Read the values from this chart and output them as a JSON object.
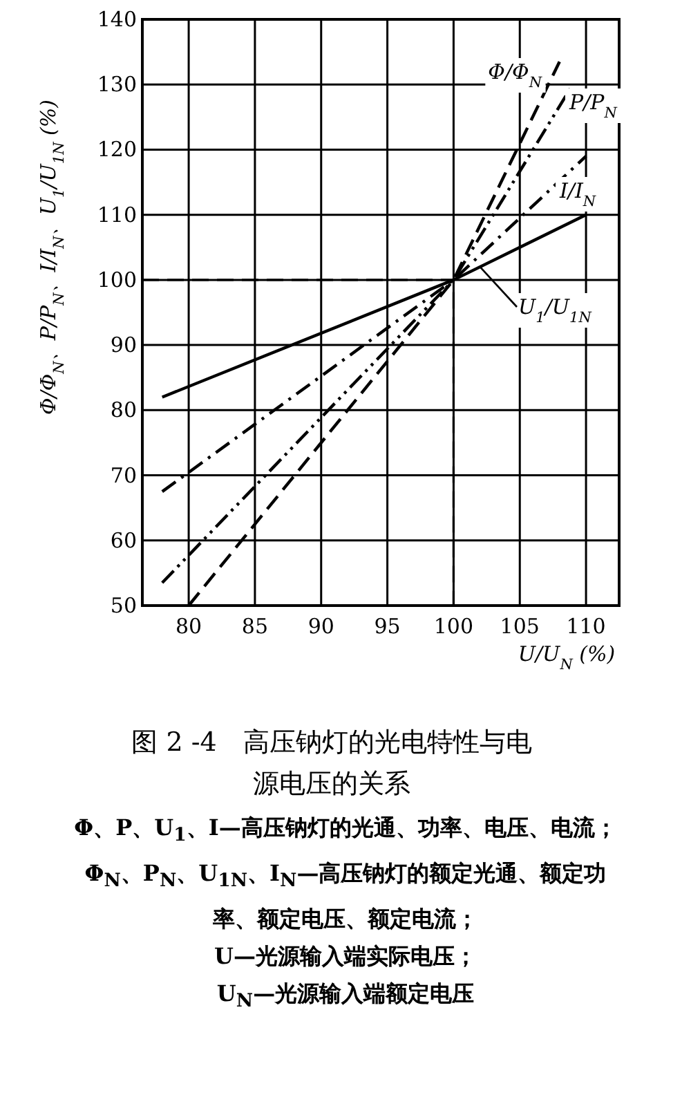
{
  "chart_data": {
    "type": "line",
    "title": "图 2 -4　高压钠灯的光电特性与电源电压的关系",
    "xlabel": "U/U$_{N}$ (%)",
    "ylabel": "Φ/Φ$_{N}$、P/P$_{N}$、I/I$_{N}$、U$_{1}$/U$_{1N}$ (%)",
    "series": [
      {
        "name": "Φ/Φ$_{N}$",
        "color": "#000000",
        "line_style": "dashed",
        "x": [
          80,
          100,
          108
        ],
        "values": [
          50,
          100,
          133.5
        ]
      },
      {
        "name": "P/P$_{N}$",
        "color": "#000000",
        "line_style": "dashdotdot",
        "x": [
          78,
          100,
          109
        ],
        "values": [
          53.5,
          100,
          130
        ]
      },
      {
        "name": "I/I$_{N}$",
        "color": "#000000",
        "line_style": "dashdot",
        "x": [
          78,
          100,
          110
        ],
        "values": [
          67.5,
          100,
          119
        ]
      },
      {
        "name": "U$_{1}$/U$_{1N}$",
        "color": "#000000",
        "line_style": "solid",
        "x": [
          78,
          100,
          110
        ],
        "values": [
          82,
          100,
          110
        ]
      },
      {
        "color": "#000000",
        "line_style": "dashed",
        "x": [
          76.5,
          100,
          100
        ],
        "values": [
          100,
          100,
          50
        ]
      }
    ],
    "xlim": [
      76.5,
      112.5
    ],
    "ylim": [
      50,
      140
    ],
    "xticks": [
      80,
      85,
      90,
      95,
      100,
      105,
      110
    ],
    "yticks": [
      50,
      60,
      70,
      80,
      90,
      100,
      110,
      120,
      130,
      140
    ],
    "grid": true,
    "annotations": [
      "Φ、P、U$_{1}$、I—高压钠灯的光通、功率、电压、电流；",
      "Φ$_{N}$、P$_{N}$、U$_{1N}$、I$_{N}$—高压钠灯的额定光通、额定功率、额定电压、额定电流；",
      "U—光源输入端实际电压；",
      "U$_{N}$—光源输入端额定电压"
    ]
  }
}
